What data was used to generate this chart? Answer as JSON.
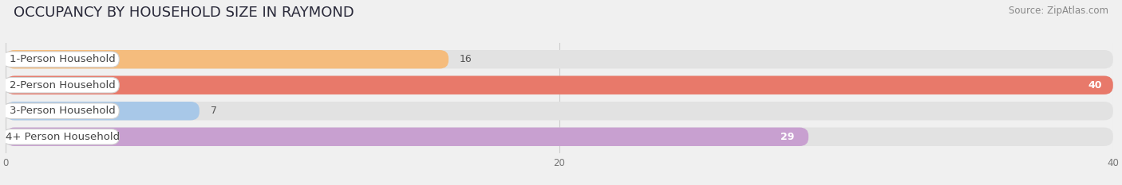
{
  "title": "OCCUPANCY BY HOUSEHOLD SIZE IN RAYMOND",
  "source": "Source: ZipAtlas.com",
  "categories": [
    "1-Person Household",
    "2-Person Household",
    "3-Person Household",
    "4+ Person Household"
  ],
  "values": [
    16,
    40,
    7,
    29
  ],
  "bar_colors": [
    "#f5bc7d",
    "#e8796a",
    "#a8c8e8",
    "#c8a0d0"
  ],
  "xlim": [
    0,
    40
  ],
  "xticks": [
    0,
    20,
    40
  ],
  "background_color": "#f0f0f0",
  "bar_background_color": "#e2e2e2",
  "title_fontsize": 13,
  "source_fontsize": 8.5,
  "label_fontsize": 9.5,
  "value_fontsize": 9
}
